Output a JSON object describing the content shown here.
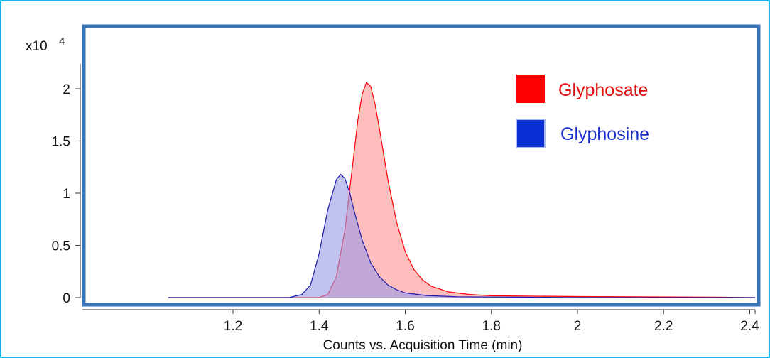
{
  "chart_data": {
    "type": "area",
    "title": "",
    "xlabel": "Counts vs. Acquisition Time (min)",
    "y_multiplier_label": "x10",
    "y_multiplier_exponent": "4",
    "xlim": [
      1.05,
      2.6
    ],
    "ylim": [
      -0.05,
      2.3
    ],
    "xticks": [
      1.2,
      1.4,
      1.6,
      1.8,
      2.0,
      2.2,
      2.4
    ],
    "xtick_labels": [
      "1.2",
      "1.4",
      "1.6",
      "1.8",
      "2",
      "2.2",
      "2.4"
    ],
    "yticks": [
      0,
      0.5,
      1.0,
      1.5,
      2.0
    ],
    "ytick_labels": [
      "0",
      "0.5",
      "1",
      "1.5",
      "2"
    ],
    "legend_position": "top-right",
    "series": [
      {
        "name": "Glyphosate",
        "color": "#ff0000",
        "fill": "#ffb3b3",
        "x": [
          1.05,
          1.4,
          1.42,
          1.44,
          1.46,
          1.48,
          1.49,
          1.5,
          1.51,
          1.52,
          1.53,
          1.54,
          1.56,
          1.58,
          1.6,
          1.62,
          1.64,
          1.66,
          1.7,
          1.75,
          1.8,
          2.0,
          2.3,
          2.6
        ],
        "y": [
          0,
          0,
          0.03,
          0.2,
          0.65,
          1.35,
          1.7,
          1.95,
          2.06,
          2.02,
          1.85,
          1.62,
          1.12,
          0.72,
          0.44,
          0.27,
          0.17,
          0.11,
          0.055,
          0.03,
          0.018,
          0.01,
          0.005,
          0
        ]
      },
      {
        "name": "Glyphosine",
        "color": "#1a1aa8",
        "fill": "#9999e6",
        "x": [
          1.05,
          1.33,
          1.36,
          1.38,
          1.4,
          1.42,
          1.44,
          1.45,
          1.46,
          1.47,
          1.48,
          1.5,
          1.52,
          1.54,
          1.56,
          1.58,
          1.6,
          1.65,
          1.72,
          2.0,
          2.6
        ],
        "y": [
          0,
          0,
          0.03,
          0.12,
          0.42,
          0.84,
          1.13,
          1.18,
          1.14,
          1.02,
          0.85,
          0.55,
          0.33,
          0.2,
          0.12,
          0.075,
          0.045,
          0.02,
          0.008,
          0,
          0
        ]
      }
    ]
  }
}
